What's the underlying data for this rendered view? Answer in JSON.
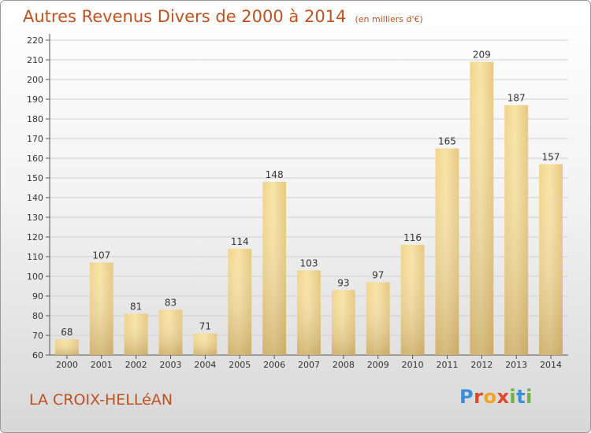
{
  "header": {
    "title": "Autres Revenus Divers de 2000 à 2014",
    "subtitle": "(en milliers d'€)"
  },
  "footer": {
    "city": "LA CROIX-HELLéAN",
    "logo_text": "Proxiti"
  },
  "colors": {
    "title": "#c0521f",
    "bar_light": "#f7e3a6",
    "bar_dark": "#c8a863",
    "grid": "#cfcfcf"
  },
  "chart_data": {
    "type": "bar",
    "title": "Autres Revenus Divers de 2000 à 2014",
    "subtitle": "(en milliers d'€)",
    "categories": [
      "2000",
      "2001",
      "2002",
      "2003",
      "2004",
      "2005",
      "2006",
      "2007",
      "2008",
      "2009",
      "2010",
      "2011",
      "2012",
      "2013",
      "2014"
    ],
    "values": [
      68,
      107,
      81,
      83,
      71,
      114,
      148,
      103,
      93,
      97,
      116,
      165,
      209,
      187,
      157
    ],
    "ylim": [
      60,
      220
    ],
    "ytick_step": 10,
    "grid": true,
    "data_labels": true
  }
}
